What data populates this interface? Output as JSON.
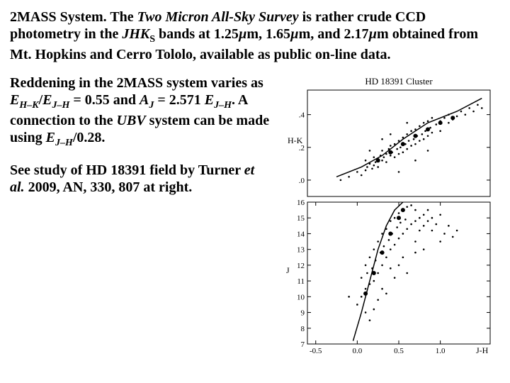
{
  "top": {
    "lead": "2MASS System.",
    "survey_name": "Two Micron All-Sky Survey",
    "after_survey": " is rather crude CCD photometry in the ",
    "bands_italic": "JHK",
    "bands_sub": "S",
    "text2": " bands at 1.25",
    "mu": "µ",
    "unit": "m",
    "text3": ", 1.65",
    "text4": ", and 2.17",
    "text5": " obtained from Mt. Hopkins and Cerro Tololo, available as public on-line data."
  },
  "para_red": {
    "t1": "Reddening in the 2MASS system varies as ",
    "e1": "E",
    "sub1": "H–K",
    "slash": "/",
    "e2": "E",
    "sub2": "J–H",
    "eq1": " = 0.55 and ",
    "a_it": "A",
    "a_sub": "J",
    "eq2": " = 2.571 ",
    "e3": "E",
    "sub3": "J–H",
    "t2": ". A connection to the ",
    "ubv": "UBV",
    "t3": " system can be made using ",
    "e4": "E",
    "sub4": "J–H",
    "t4": "/0.28."
  },
  "para_ref": {
    "t1": "See study of HD 18391 field by Turner ",
    "etal": "et al.",
    "t2": " 2009, AN, 330, 807 at right."
  },
  "chart": {
    "title": "HD 18391 Cluster",
    "top_panel": {
      "type": "scatter",
      "ylabel": "H-K",
      "ylim": [
        -0.1,
        0.55
      ],
      "yticks": [
        0,
        0.2,
        0.4
      ],
      "xlim": [
        -0.6,
        1.6
      ],
      "line": [
        [
          -0.25,
          0.02
        ],
        [
          0.05,
          0.08
        ],
        [
          0.3,
          0.15
        ],
        [
          0.55,
          0.25
        ],
        [
          0.85,
          0.35
        ],
        [
          1.2,
          0.42
        ],
        [
          1.5,
          0.5
        ]
      ],
      "points": [
        [
          0.0,
          0.05
        ],
        [
          0.05,
          0.03
        ],
        [
          0.1,
          0.06
        ],
        [
          0.1,
          0.12
        ],
        [
          0.12,
          0.08
        ],
        [
          0.15,
          0.1
        ],
        [
          0.18,
          0.07
        ],
        [
          0.2,
          0.14
        ],
        [
          0.2,
          0.09
        ],
        [
          0.22,
          0.11
        ],
        [
          0.25,
          0.13
        ],
        [
          0.25,
          0.08
        ],
        [
          0.28,
          0.15
        ],
        [
          0.3,
          0.12
        ],
        [
          0.3,
          0.18
        ],
        [
          0.32,
          0.14
        ],
        [
          0.35,
          0.16
        ],
        [
          0.35,
          0.11
        ],
        [
          0.38,
          0.19
        ],
        [
          0.4,
          0.15
        ],
        [
          0.4,
          0.21
        ],
        [
          0.42,
          0.17
        ],
        [
          0.45,
          0.14
        ],
        [
          0.45,
          0.22
        ],
        [
          0.48,
          0.19
        ],
        [
          0.5,
          0.16
        ],
        [
          0.5,
          0.24
        ],
        [
          0.52,
          0.2
        ],
        [
          0.55,
          0.17
        ],
        [
          0.55,
          0.26
        ],
        [
          0.58,
          0.22
        ],
        [
          0.6,
          0.19
        ],
        [
          0.6,
          0.28
        ],
        [
          0.62,
          0.24
        ],
        [
          0.65,
          0.21
        ],
        [
          0.65,
          0.3
        ],
        [
          0.68,
          0.25
        ],
        [
          0.7,
          0.22
        ],
        [
          0.7,
          0.31
        ],
        [
          0.72,
          0.27
        ],
        [
          0.75,
          0.24
        ],
        [
          0.75,
          0.33
        ],
        [
          0.78,
          0.28
        ],
        [
          0.8,
          0.25
        ],
        [
          0.8,
          0.35
        ],
        [
          0.82,
          0.3
        ],
        [
          0.85,
          0.27
        ],
        [
          0.85,
          0.36
        ],
        [
          0.88,
          0.32
        ],
        [
          0.9,
          0.29
        ],
        [
          0.9,
          0.38
        ],
        [
          0.95,
          0.34
        ],
        [
          1.0,
          0.36
        ],
        [
          1.0,
          0.3
        ],
        [
          1.05,
          0.38
        ],
        [
          1.1,
          0.35
        ],
        [
          1.1,
          0.4
        ],
        [
          1.15,
          0.37
        ],
        [
          1.2,
          0.39
        ],
        [
          1.25,
          0.42
        ],
        [
          1.3,
          0.4
        ],
        [
          1.35,
          0.44
        ],
        [
          1.4,
          0.42
        ],
        [
          1.45,
          0.46
        ],
        [
          1.5,
          0.44
        ],
        [
          0.3,
          0.25
        ],
        [
          0.5,
          0.05
        ],
        [
          0.7,
          0.12
        ],
        [
          0.4,
          0.28
        ],
        [
          0.6,
          0.35
        ],
        [
          0.15,
          0.18
        ],
        [
          0.85,
          0.18
        ],
        [
          -0.1,
          0.02
        ],
        [
          -0.2,
          0.0
        ]
      ],
      "big_points": [
        [
          0.25,
          0.12
        ],
        [
          0.4,
          0.17
        ],
        [
          0.55,
          0.22
        ],
        [
          0.7,
          0.27
        ],
        [
          0.85,
          0.31
        ],
        [
          1.0,
          0.35
        ],
        [
          1.15,
          0.38
        ]
      ],
      "colors": {
        "point": "#000000",
        "line": "#000000",
        "axis": "#000000",
        "bg": "#ffffff"
      }
    },
    "bottom_panel": {
      "type": "scatter",
      "ylabel": "J",
      "ylim_inverted": [
        16,
        7
      ],
      "yticks": [
        7,
        8,
        9,
        10,
        11,
        12,
        13,
        14,
        15,
        16
      ],
      "xlim": [
        -0.6,
        1.6
      ],
      "xlabel": "J-H",
      "xticks": [
        -0.5,
        0.0,
        0.5,
        1.0
      ],
      "line": [
        [
          -0.05,
          7.2
        ],
        [
          0.05,
          9.0
        ],
        [
          0.15,
          11.0
        ],
        [
          0.25,
          13.0
        ],
        [
          0.35,
          14.5
        ],
        [
          0.45,
          15.5
        ],
        [
          0.55,
          16.0
        ]
      ],
      "points": [
        [
          0.0,
          9.5
        ],
        [
          0.05,
          10.0
        ],
        [
          0.05,
          11.2
        ],
        [
          0.1,
          10.5
        ],
        [
          0.1,
          12.0
        ],
        [
          0.12,
          11.5
        ],
        [
          0.15,
          10.8
        ],
        [
          0.15,
          12.5
        ],
        [
          0.18,
          11.8
        ],
        [
          0.2,
          11.0
        ],
        [
          0.2,
          13.0
        ],
        [
          0.22,
          12.3
        ],
        [
          0.25,
          11.5
        ],
        [
          0.25,
          13.5
        ],
        [
          0.28,
          12.8
        ],
        [
          0.3,
          12.0
        ],
        [
          0.3,
          14.0
        ],
        [
          0.32,
          13.2
        ],
        [
          0.35,
          12.5
        ],
        [
          0.35,
          14.3
        ],
        [
          0.38,
          13.6
        ],
        [
          0.4,
          13.0
        ],
        [
          0.4,
          14.8
        ],
        [
          0.42,
          14.0
        ],
        [
          0.45,
          13.3
        ],
        [
          0.45,
          15.0
        ],
        [
          0.48,
          14.4
        ],
        [
          0.5,
          13.7
        ],
        [
          0.5,
          15.3
        ],
        [
          0.52,
          14.7
        ],
        [
          0.55,
          14.0
        ],
        [
          0.55,
          15.5
        ],
        [
          0.58,
          14.9
        ],
        [
          0.6,
          14.3
        ],
        [
          0.6,
          15.7
        ],
        [
          0.65,
          14.6
        ],
        [
          0.65,
          15.8
        ],
        [
          0.7,
          14.8
        ],
        [
          0.7,
          15.5
        ],
        [
          0.75,
          15.0
        ],
        [
          0.75,
          14.2
        ],
        [
          0.8,
          15.2
        ],
        [
          0.8,
          14.5
        ],
        [
          0.85,
          14.8
        ],
        [
          0.85,
          15.5
        ],
        [
          0.9,
          14.2
        ],
        [
          0.9,
          15.0
        ],
        [
          0.95,
          14.6
        ],
        [
          1.0,
          13.5
        ],
        [
          1.0,
          15.2
        ],
        [
          1.05,
          14.0
        ],
        [
          1.1,
          14.5
        ],
        [
          1.15,
          13.8
        ],
        [
          1.2,
          14.2
        ],
        [
          0.1,
          9.0
        ],
        [
          0.3,
          10.5
        ],
        [
          0.5,
          12.0
        ],
        [
          0.15,
          8.5
        ],
        [
          -0.1,
          10.0
        ],
        [
          0.6,
          11.5
        ],
        [
          0.7,
          12.8
        ],
        [
          0.4,
          11.8
        ],
        [
          0.55,
          12.5
        ],
        [
          0.25,
          9.8
        ],
        [
          0.35,
          10.2
        ],
        [
          0.45,
          11.2
        ],
        [
          0.2,
          9.2
        ],
        [
          0.7,
          13.5
        ],
        [
          0.8,
          13.0
        ]
      ],
      "big_points": [
        [
          0.1,
          10.2
        ],
        [
          0.2,
          11.5
        ],
        [
          0.3,
          12.8
        ],
        [
          0.4,
          14.0
        ],
        [
          0.5,
          15.0
        ],
        [
          0.55,
          15.5
        ]
      ],
      "colors": {
        "point": "#000000",
        "line": "#000000",
        "axis": "#000000",
        "bg": "#ffffff"
      }
    }
  }
}
